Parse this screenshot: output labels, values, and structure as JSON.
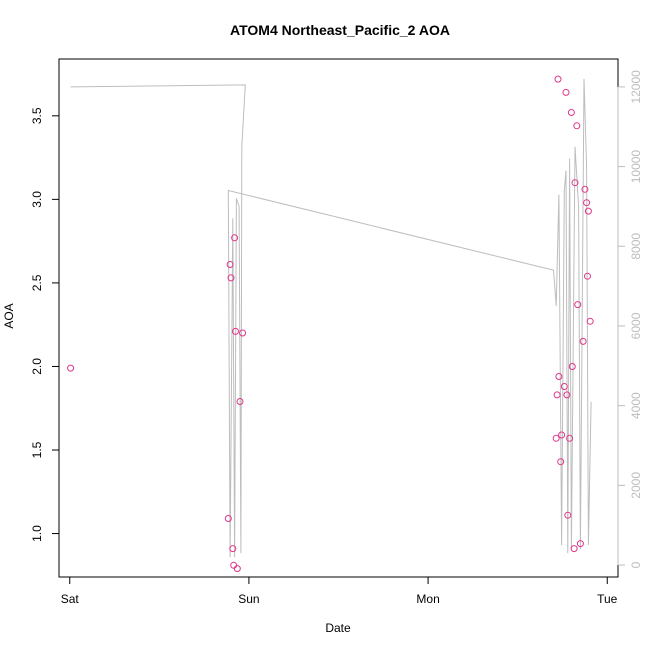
{
  "chart_data": {
    "type": "scatter",
    "title": "ATOM4 Northeast_Pacific_2 AOA",
    "xlabel": "Date",
    "ylabel": "AOA",
    "xlim_days": [
      -0.06,
      3.06
    ],
    "x_ticks": [
      {
        "label": "Sat",
        "value": 0
      },
      {
        "label": "Sun",
        "value": 1
      },
      {
        "label": "Mon",
        "value": 2
      },
      {
        "label": "Tue",
        "value": 3
      }
    ],
    "ylim": [
      0.74,
      3.84
    ],
    "y_ticks": [
      1.0,
      1.5,
      2.0,
      2.5,
      3.0,
      3.5
    ],
    "y_tick_labels": [
      "1.0",
      "1.5",
      "2.0",
      "2.5",
      "3.0",
      "3.5"
    ],
    "y2lim": [
      -300,
      12700
    ],
    "y2_ticks": [
      0,
      2000,
      4000,
      6000,
      8000,
      10000,
      12000
    ],
    "y2_tick_labels": [
      "0",
      "2000",
      "4000",
      "6000",
      "8000",
      "10000",
      "12000"
    ],
    "colors": {
      "points": "#e0368c",
      "line": "#bdbdbd",
      "axis": "#000000",
      "right_axis": "#bdbdbd"
    },
    "series": [
      {
        "type": "scatter",
        "axis": "left",
        "points": [
          [
            0.005,
            1.99
          ],
          [
            0.885,
            1.09
          ],
          [
            0.895,
            2.61
          ],
          [
            0.9,
            2.53
          ],
          [
            0.91,
            0.91
          ],
          [
            0.915,
            0.81
          ],
          [
            0.92,
            2.77
          ],
          [
            0.925,
            2.21
          ],
          [
            0.935,
            0.79
          ],
          [
            0.95,
            1.79
          ],
          [
            0.965,
            2.2
          ],
          [
            2.715,
            1.57
          ],
          [
            2.72,
            1.83
          ],
          [
            2.725,
            3.72
          ],
          [
            2.73,
            1.94
          ],
          [
            2.74,
            1.43
          ],
          [
            2.745,
            1.59
          ],
          [
            2.76,
            1.88
          ],
          [
            2.77,
            3.64
          ],
          [
            2.775,
            1.83
          ],
          [
            2.78,
            1.11
          ],
          [
            2.79,
            1.57
          ],
          [
            2.8,
            3.52
          ],
          [
            2.805,
            2.0
          ],
          [
            2.815,
            0.91
          ],
          [
            2.82,
            3.1
          ],
          [
            2.83,
            3.44
          ],
          [
            2.835,
            2.37
          ],
          [
            2.85,
            0.94
          ],
          [
            2.865,
            2.15
          ],
          [
            2.875,
            3.06
          ],
          [
            2.885,
            2.98
          ],
          [
            2.89,
            2.54
          ],
          [
            2.895,
            2.93
          ],
          [
            2.905,
            2.27
          ]
        ]
      },
      {
        "type": "line",
        "axis": "right",
        "points": [
          [
            0.005,
            12000
          ],
          [
            0.98,
            12050
          ],
          [
            0.96,
            10500
          ],
          [
            0.955,
            300
          ],
          [
            0.945,
            9000
          ],
          [
            0.93,
            9200
          ],
          [
            0.92,
            200
          ],
          [
            0.91,
            8700
          ],
          [
            0.895,
            200
          ],
          [
            0.885,
            9400
          ],
          [
            2.7,
            7400
          ],
          [
            2.715,
            6500
          ],
          [
            2.73,
            9300
          ],
          [
            2.745,
            500
          ],
          [
            2.76,
            9400
          ],
          [
            2.77,
            9900
          ],
          [
            2.78,
            300
          ],
          [
            2.79,
            10200
          ],
          [
            2.8,
            400
          ],
          [
            2.82,
            10500
          ],
          [
            2.84,
            9000
          ],
          [
            2.85,
            400
          ],
          [
            2.87,
            12200
          ],
          [
            2.885,
            10000
          ],
          [
            2.895,
            500
          ],
          [
            2.91,
            4100
          ]
        ]
      }
    ]
  }
}
